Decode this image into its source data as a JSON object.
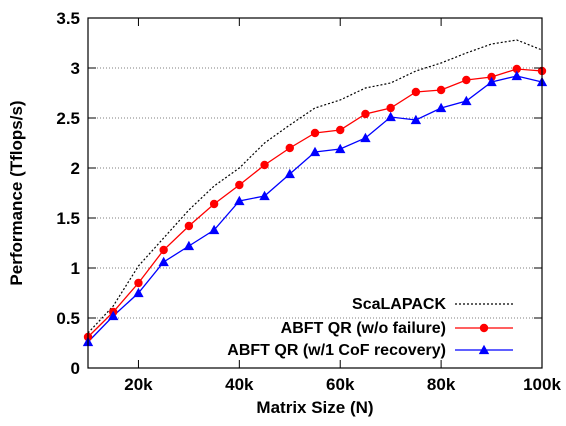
{
  "chart_data": {
    "type": "line",
    "xlabel": "Matrix Size (N)",
    "ylabel": "Performance (Tflops/s)",
    "xlim": [
      10000,
      100000
    ],
    "ylim": [
      0,
      3.5
    ],
    "x_ticks": [
      {
        "value": 20000,
        "label": "20k"
      },
      {
        "value": 40000,
        "label": "40k"
      },
      {
        "value": 60000,
        "label": "60k"
      },
      {
        "value": 80000,
        "label": "80k"
      },
      {
        "value": 100000,
        "label": "100k"
      }
    ],
    "y_ticks": [
      {
        "value": 0,
        "label": "0"
      },
      {
        "value": 0.5,
        "label": "0.5"
      },
      {
        "value": 1,
        "label": "1"
      },
      {
        "value": 1.5,
        "label": "1.5"
      },
      {
        "value": 2,
        "label": "2"
      },
      {
        "value": 2.5,
        "label": "2.5"
      },
      {
        "value": 3,
        "label": "3"
      },
      {
        "value": 3.5,
        "label": "3.5"
      }
    ],
    "grid": "horizontal dotted",
    "legend_position": "bottom-right",
    "x": [
      10000,
      15000,
      20000,
      25000,
      30000,
      35000,
      40000,
      45000,
      50000,
      55000,
      60000,
      65000,
      70000,
      75000,
      80000,
      85000,
      90000,
      95000,
      100000
    ],
    "series": [
      {
        "name": "ScaLAPACK",
        "color": "#000000",
        "style": "dotted",
        "marker": "none",
        "values": [
          0.35,
          0.62,
          1.02,
          1.3,
          1.58,
          1.82,
          2.0,
          2.25,
          2.43,
          2.6,
          2.68,
          2.8,
          2.85,
          2.97,
          3.05,
          3.15,
          3.24,
          3.28,
          3.18
        ]
      },
      {
        "name": "ABFT QR (w/o failure)",
        "color": "#ff0000",
        "style": "solid",
        "marker": "circle",
        "values": [
          0.31,
          0.56,
          0.85,
          1.18,
          1.42,
          1.64,
          1.83,
          2.03,
          2.2,
          2.35,
          2.38,
          2.54,
          2.6,
          2.76,
          2.78,
          2.88,
          2.91,
          2.99,
          2.97
        ]
      },
      {
        "name": "ABFT QR (w/1 CoF recovery)",
        "color": "#0000ff",
        "style": "solid",
        "marker": "triangle",
        "values": [
          0.26,
          0.52,
          0.75,
          1.06,
          1.22,
          1.38,
          1.67,
          1.72,
          1.94,
          2.16,
          2.19,
          2.3,
          2.51,
          2.48,
          2.6,
          2.67,
          2.86,
          2.92,
          2.86
        ]
      }
    ]
  }
}
